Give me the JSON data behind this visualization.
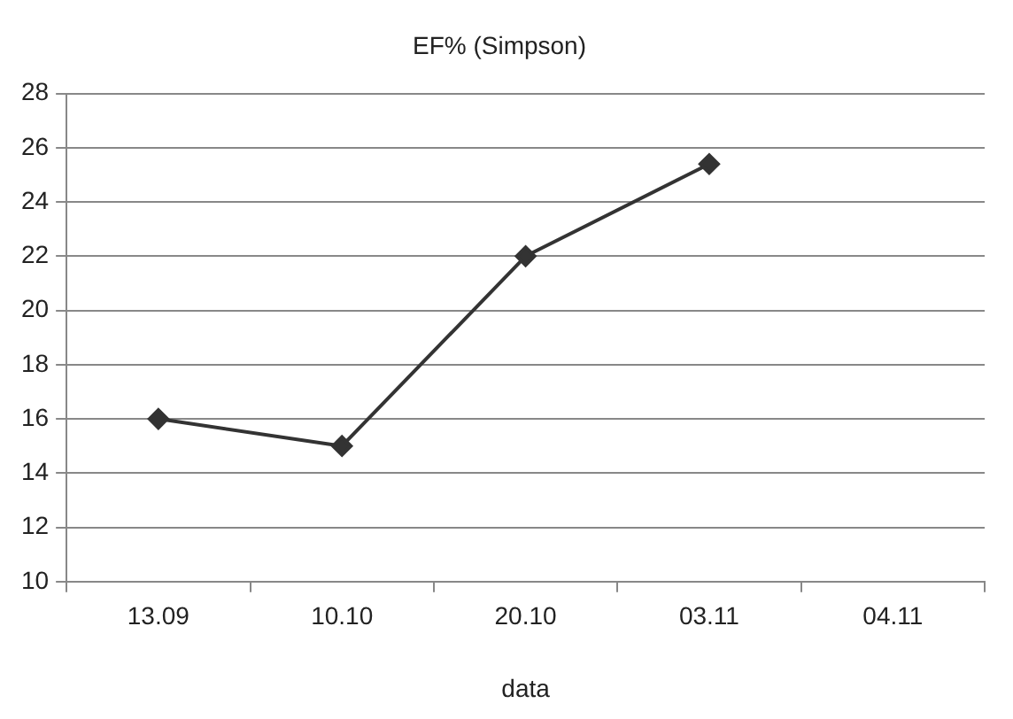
{
  "chart_data": {
    "type": "line",
    "title": "EF% (Simpson)",
    "xlabel": "data",
    "categories": [
      "13.09",
      "10.10",
      "20.10",
      "03.11",
      "04.11"
    ],
    "series": [
      {
        "color": "#333333",
        "values": [
          16,
          15,
          22,
          25.4,
          null
        ]
      }
    ],
    "ylim": [
      10,
      28
    ],
    "yticks": [
      10,
      12,
      14,
      16,
      18,
      20,
      22,
      24,
      26,
      28
    ],
    "grid": "y",
    "legend": false,
    "marker": "diamond",
    "line_style": "solid"
  }
}
